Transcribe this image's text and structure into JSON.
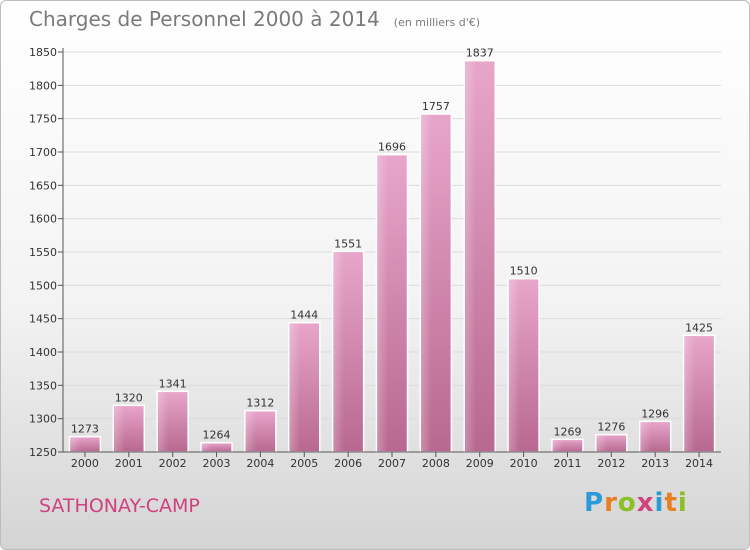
{
  "header": {
    "title": "Charges de Personnel 2000 à 2014",
    "unit": "(en milliers d'€)"
  },
  "footer": {
    "commune": "SATHONAY-CAMP",
    "logo": [
      "P",
      "r",
      "o",
      "x",
      "i",
      "t",
      "i"
    ],
    "logo_colors": [
      "#2b9ad6",
      "#e67e22",
      "#8cbf26",
      "#d0417f",
      "#2b9ad6",
      "#e67e22",
      "#8cbf26"
    ]
  },
  "chart_data": {
    "type": "bar",
    "categories": [
      "2000",
      "2001",
      "2002",
      "2003",
      "2004",
      "2005",
      "2006",
      "2007",
      "2008",
      "2009",
      "2010",
      "2011",
      "2012",
      "2013",
      "2014"
    ],
    "values": [
      1273,
      1320,
      1341,
      1264,
      1312,
      1444,
      1551,
      1696,
      1757,
      1837,
      1510,
      1269,
      1276,
      1296,
      1425
    ],
    "title": "Charges de Personnel 2000 à 2014",
    "subtitle": "(en milliers d'€)",
    "xlabel": "",
    "ylabel": "",
    "ylim": [
      1250,
      1850
    ],
    "yticks": [
      1250,
      1300,
      1350,
      1400,
      1450,
      1500,
      1550,
      1600,
      1650,
      1700,
      1750,
      1800,
      1850
    ],
    "grid": true,
    "bar_color": "#d98ab5"
  }
}
